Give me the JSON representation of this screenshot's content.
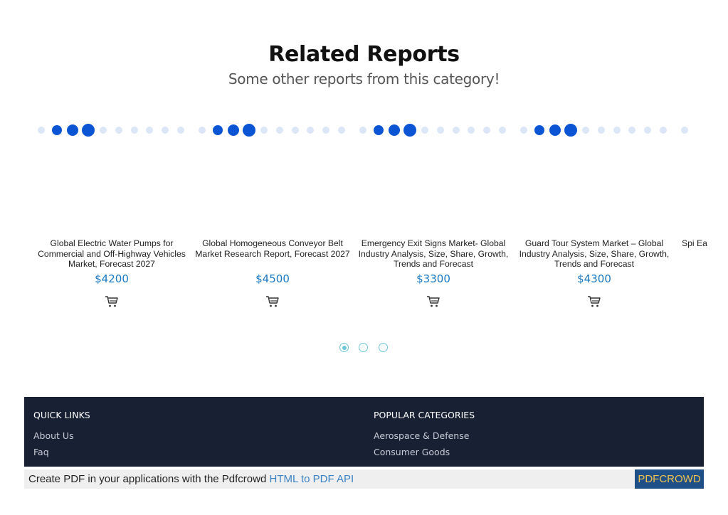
{
  "related": {
    "title": "Related Reports",
    "subtitle": "Some other reports from this category!"
  },
  "products": [
    {
      "title": "Global Electric Water Pumps for Commercial and Off-Highway Vehicles Market, Forecast 2027",
      "price": "$4200",
      "cart_icon": "shopping-cart-icon"
    },
    {
      "title": "Global Homogeneous Conveyor Belt Market Research Report, Forecast 2027",
      "price": "$4500",
      "cart_icon": "shopping-cart-icon"
    },
    {
      "title": "Emergency Exit Signs Market- Global Industry Analysis, Size, Share, Growth, Trends and Forecast",
      "price": "$3300",
      "cart_icon": "shopping-cart-icon"
    },
    {
      "title": "Guard Tour System Market – Global Industry Analysis, Size, Share, Growth, Trends and Forecast",
      "price": "$4300",
      "cart_icon": "shopping-cart-icon"
    },
    {
      "title": "Spi Ea",
      "price": "",
      "cart_icon": "shopping-cart-icon"
    }
  ],
  "pagination": {
    "pages": 3,
    "active": 1
  },
  "footer": {
    "quick_links": {
      "heading": "QUICK LINKS",
      "items": [
        "About Us",
        "Faq"
      ]
    },
    "popular_categories": {
      "heading": "POPULAR CATEGORIES",
      "items": [
        "Aerospace & Defense",
        "Consumer Goods"
      ]
    }
  },
  "pdf_bar": {
    "text": "Create PDF in your applications with the Pdfcrowd",
    "link": "HTML to PDF API",
    "button": "PDFCROWD"
  },
  "colors": {
    "accent_blue": "#0b55d4",
    "price_blue": "#1a78c2",
    "footer_bg": "#182033",
    "pager_teal": "#6dc7d9"
  }
}
